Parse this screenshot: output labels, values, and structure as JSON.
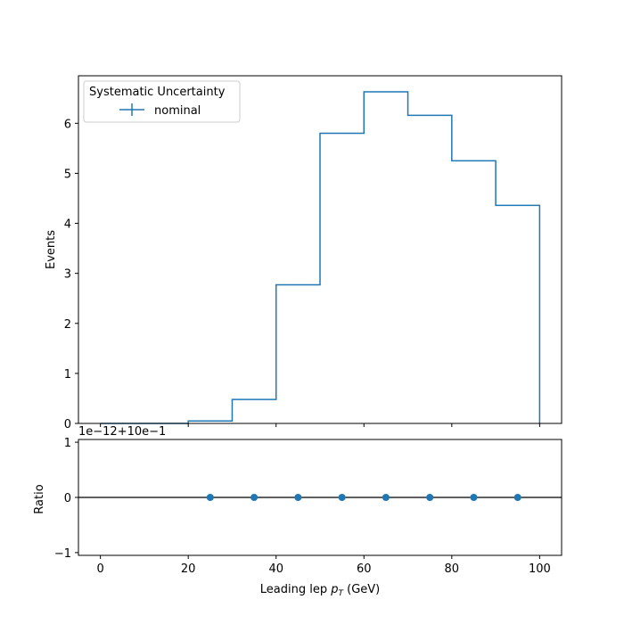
{
  "chart_data": [
    {
      "type": "step",
      "panel": "main",
      "ylabel": "Events",
      "xlim": [
        -5,
        105
      ],
      "ylim": [
        0,
        6.95
      ],
      "yticks": [
        0,
        1,
        2,
        3,
        4,
        5,
        6
      ],
      "bin_edges": [
        0,
        10,
        20,
        30,
        40,
        50,
        60,
        70,
        80,
        90,
        100
      ],
      "series": [
        {
          "name": "nominal",
          "color": "#1f77b4",
          "values": [
            0.0,
            0.0,
            0.05,
            0.48,
            2.77,
            5.8,
            6.63,
            6.16,
            5.25,
            4.36
          ]
        }
      ],
      "legend": {
        "title": "Systematic Uncertainty",
        "entries": [
          "nominal"
        ],
        "placement": "top-left"
      }
    },
    {
      "type": "scatter",
      "panel": "ratio",
      "ylabel": "Ratio",
      "xlabel_prefix": "Leading lep ",
      "xlabel_symbol": "p",
      "xlabel_subscript": "T",
      "xlabel_suffix": " (GeV)",
      "offset_text": "1e−12+10e−1",
      "xlim": [
        -5,
        105
      ],
      "ylim": [
        -1.05,
        1.05
      ],
      "yticks": [
        -1,
        0,
        1
      ],
      "xticks": [
        0,
        20,
        40,
        60,
        80,
        100
      ],
      "reference_line": 0,
      "color": "#1f77b4",
      "x": [
        25,
        35,
        45,
        55,
        65,
        75,
        85,
        95
      ],
      "y": [
        0,
        0,
        0,
        0,
        0,
        0,
        0,
        0
      ]
    }
  ]
}
